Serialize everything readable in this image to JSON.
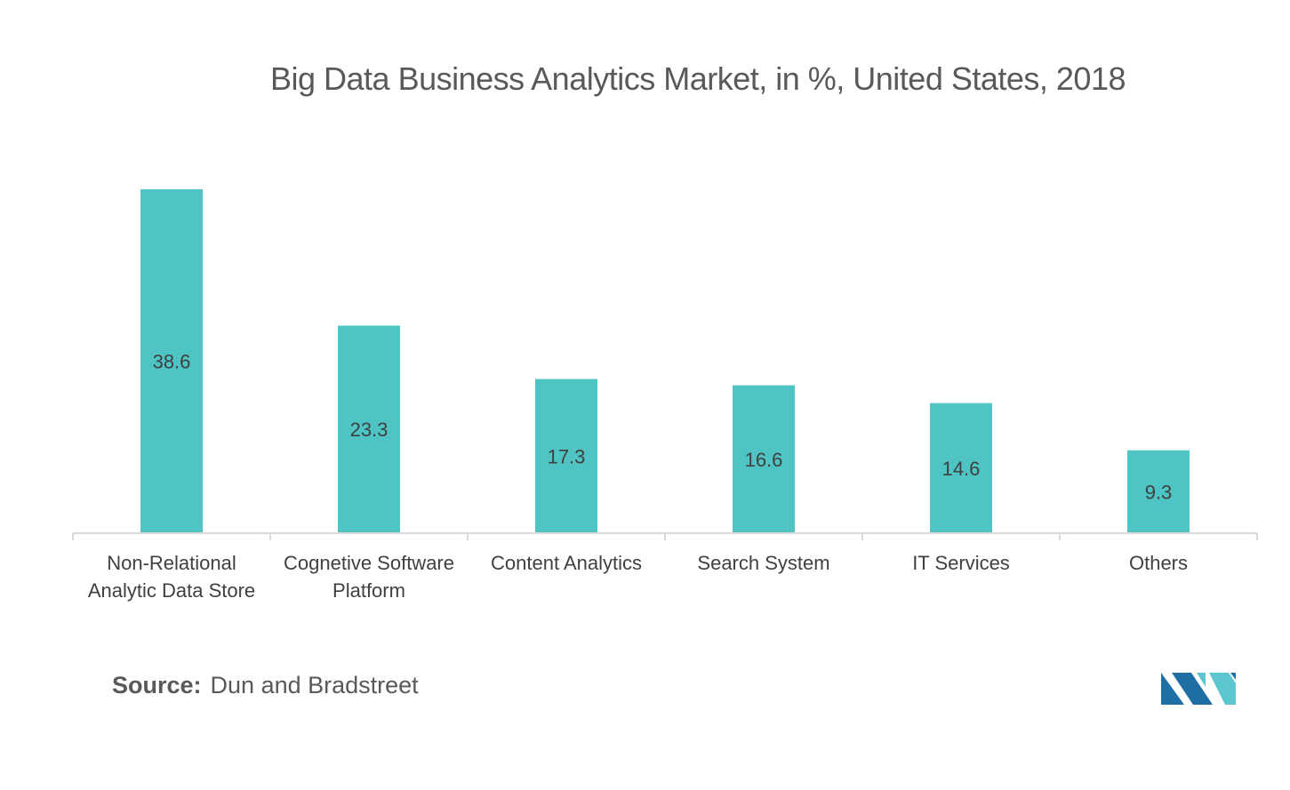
{
  "chart_data": {
    "type": "bar",
    "title": "Big Data Business Analytics Market, in %, United States, 2018",
    "categories": [
      [
        "Non-Relational",
        "Analytic Data Store"
      ],
      [
        "Cognetive Software",
        "Platform"
      ],
      [
        "Content Analytics"
      ],
      [
        "Search System"
      ],
      [
        "IT Services"
      ],
      [
        "Others"
      ]
    ],
    "values": [
      38.6,
      23.3,
      17.3,
      16.6,
      14.6,
      9.3
    ],
    "data_labels": [
      "38.6",
      "23.3",
      "17.3",
      "16.6",
      "14.6",
      "9.3"
    ],
    "xlabel": "",
    "ylabel": "",
    "ylim": [
      0,
      40
    ],
    "grid": false,
    "legend": "none",
    "bar_color": "#4fc4c4",
    "axis_color": "#d9d9d9",
    "label_color": "#404040"
  },
  "source": {
    "label": "Source:",
    "value": "Dun and Bradstreet"
  },
  "logo": {
    "icon": "mordor-intelligence-logo-icon",
    "colors": [
      "#1f6fa5",
      "#5cc6d0"
    ]
  }
}
